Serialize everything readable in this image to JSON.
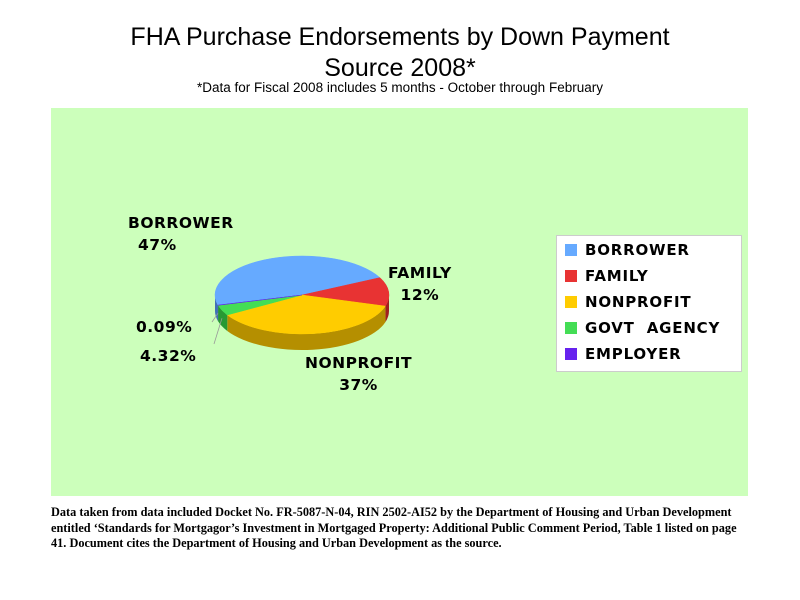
{
  "chart_data": {
    "type": "pie",
    "title": "FHA Purchase Endorsements by Down Payment Source 2008*",
    "title_lines": [
      "FHA Purchase Endorsements by Down Payment",
      "Source 2008*"
    ],
    "subtitle": "*Data for Fiscal 2008 includes 5 months - October through February",
    "plot_background": "#ccffbb",
    "legend_position": "right",
    "slices": [
      {
        "name": "BORROWER",
        "value": 47,
        "label": "47%",
        "color": "#66aaff",
        "side_color": "#3f6fb8"
      },
      {
        "name": "FAMILY",
        "value": 12,
        "label": "12%",
        "color": "#e83333",
        "side_color": "#a11f1f"
      },
      {
        "name": "NONPROFIT",
        "value": 37,
        "label": "37%",
        "color": "#ffcc00",
        "side_color": "#b58f00"
      },
      {
        "name": "GOVT AGENCY",
        "value": 4.32,
        "label": "4.32%",
        "color": "#44dd55",
        "side_color": "#279933"
      },
      {
        "name": "EMPLOYER",
        "value": 0.09,
        "label": "0.09%",
        "color": "#6622ee",
        "side_color": "#3d1299"
      }
    ]
  },
  "labels": {
    "borrower_name": "BORROWER",
    "borrower_pct": "47%",
    "family_name": "FAMILY",
    "family_pct": "12%",
    "nonprofit_name": "NONPROFIT",
    "nonprofit_pct": "37%",
    "employer_pct": "0.09%",
    "govt_pct": "4.32%"
  },
  "legend": {
    "items": [
      {
        "label": "BORROWER",
        "color": "#66aaff"
      },
      {
        "label": "FAMILY",
        "color": "#e83333"
      },
      {
        "label": "NONPROFIT",
        "color": "#ffcc00"
      },
      {
        "label": "GOVT  AGENCY",
        "color": "#44dd55"
      },
      {
        "label": "EMPLOYER",
        "color": "#6622ee"
      }
    ]
  },
  "footnote": "Data taken from data included Docket No. FR-5087-N-04, RIN 2502-AI52 by the Department of Housing and Urban Development entitled ‘Standards for Mortgagor’s Investment in Mortgaged Property: Additional Public Comment Period, Table 1 listed on page 41.  Document cites the Department of Housing and Urban Development as the source."
}
